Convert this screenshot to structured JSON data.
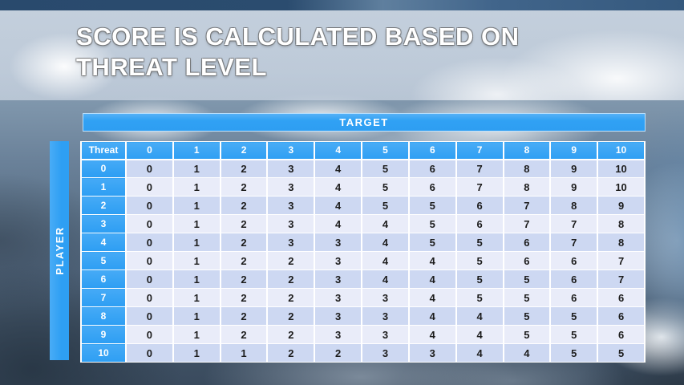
{
  "slide": {
    "title_line1": "SCORE IS CALCULATED BASED ON",
    "title_line2": "THREAT LEVEL"
  },
  "table": {
    "target_label": "TARGET",
    "player_label": "PLAYER",
    "corner_label": "Threat",
    "column_headers": [
      "0",
      "1",
      "2",
      "3",
      "4",
      "5",
      "6",
      "7",
      "8",
      "9",
      "10"
    ],
    "rows": [
      {
        "threat": "0",
        "values": [
          0,
          1,
          2,
          3,
          4,
          5,
          6,
          7,
          8,
          9,
          10
        ]
      },
      {
        "threat": "1",
        "values": [
          0,
          1,
          2,
          3,
          4,
          5,
          6,
          7,
          8,
          9,
          10
        ]
      },
      {
        "threat": "2",
        "values": [
          0,
          1,
          2,
          3,
          4,
          5,
          5,
          6,
          7,
          8,
          9
        ]
      },
      {
        "threat": "3",
        "values": [
          0,
          1,
          2,
          3,
          4,
          4,
          5,
          6,
          7,
          7,
          8
        ]
      },
      {
        "threat": "4",
        "values": [
          0,
          1,
          2,
          3,
          3,
          4,
          5,
          5,
          6,
          7,
          8
        ]
      },
      {
        "threat": "5",
        "values": [
          0,
          1,
          2,
          2,
          3,
          4,
          4,
          5,
          6,
          6,
          7
        ]
      },
      {
        "threat": "6",
        "values": [
          0,
          1,
          2,
          2,
          3,
          4,
          4,
          5,
          5,
          6,
          7
        ]
      },
      {
        "threat": "7",
        "values": [
          0,
          1,
          2,
          2,
          3,
          3,
          4,
          5,
          5,
          6,
          6
        ]
      },
      {
        "threat": "8",
        "values": [
          0,
          1,
          2,
          2,
          3,
          3,
          4,
          4,
          5,
          5,
          6
        ]
      },
      {
        "threat": "9",
        "values": [
          0,
          1,
          2,
          2,
          3,
          3,
          4,
          4,
          5,
          5,
          6
        ]
      },
      {
        "threat": "10",
        "values": [
          0,
          1,
          1,
          2,
          2,
          3,
          3,
          4,
          4,
          5,
          5
        ]
      }
    ]
  },
  "colors": {
    "accent_blue": "#2E9FF3",
    "row_band_dark": "#CDD8F2",
    "row_band_light": "#E9ECF9",
    "cell_text": "#1C1C1C",
    "header_text": "#FFFFFF",
    "top_strip": "#294A6D"
  }
}
